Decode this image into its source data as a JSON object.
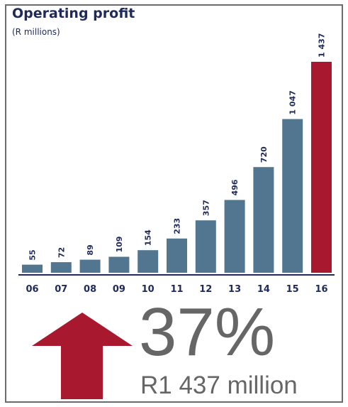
{
  "chart_data": {
    "type": "bar",
    "title": "Operating profit",
    "subtitle": "(R millions)",
    "categories": [
      "06",
      "07",
      "08",
      "09",
      "10",
      "11",
      "12",
      "13",
      "14",
      "15",
      "16"
    ],
    "values": [
      55,
      72,
      89,
      109,
      154,
      233,
      357,
      496,
      720,
      1047,
      1437
    ],
    "value_labels": [
      "55",
      "72",
      "89",
      "109",
      "154",
      "233",
      "357",
      "496",
      "720",
      "1 047",
      "1 437"
    ],
    "ylim": [
      0,
      1437
    ],
    "grid": false,
    "bar_color": "#52768f",
    "highlight_color": "#a8182e",
    "highlight_index": 10
  },
  "callout": {
    "percent": "37%",
    "amount": "R1 437 million",
    "arrow_icon": "up-arrow-icon",
    "arrow_color": "#a8182e",
    "text_color": "#666666"
  },
  "colors": {
    "title": "#1f2a5a",
    "frame": "#6b6b6b",
    "axis_line": "#1f2a5a"
  }
}
